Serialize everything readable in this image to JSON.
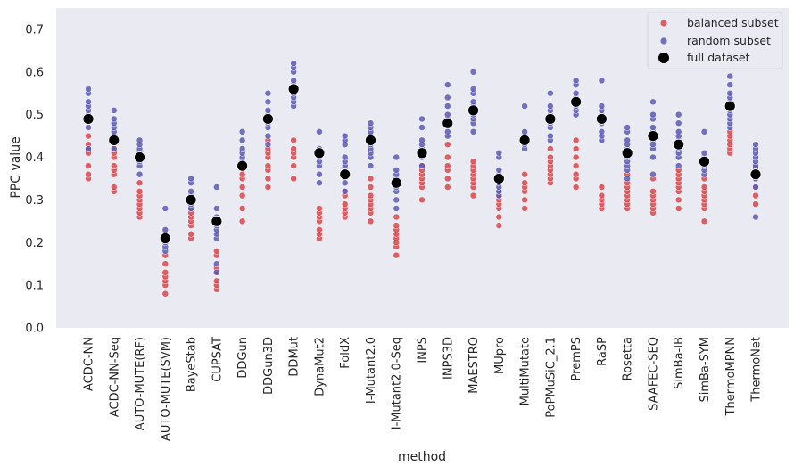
{
  "chart_data": {
    "type": "scatter",
    "xlabel": "method",
    "ylabel": "PPC value",
    "ylim": [
      0.0,
      0.75
    ],
    "yticks": [
      "0.0",
      "0.1",
      "0.2",
      "0.3",
      "0.4",
      "0.5",
      "0.6",
      "0.7"
    ],
    "grid": false,
    "legend_position": "top-right",
    "categories": [
      "ACDC-NN",
      "ACDC-NN-Seq",
      "AUTO-MUTE(RF)",
      "AUTO-MUTE(SVM)",
      "BayeStab",
      "CUPSAT",
      "DDGun",
      "DDGun3D",
      "DDMut",
      "DynaMut2",
      "FoldX",
      "I-Mutant2.0",
      "I-Mutant2.0-Seq",
      "INPS",
      "INPS3D",
      "MAESTRO",
      "MUpro",
      "MultiMutate",
      "PoPMuSiC_2.1",
      "PremPS",
      "RaSP",
      "Rosetta",
      "SAAFEC-SEQ",
      "SimBa-IB",
      "SimBa-SYM",
      "ThermoMPNN",
      "ThermoNet"
    ],
    "series": [
      {
        "name": "balanced subset",
        "color": "#d9474c",
        "values": [
          [
            0.35,
            0.36,
            0.38,
            0.41,
            0.42,
            0.43,
            0.45
          ],
          [
            0.32,
            0.33,
            0.36,
            0.37,
            0.38,
            0.4,
            0.41,
            0.42
          ],
          [
            0.26,
            0.27,
            0.28,
            0.29,
            0.3,
            0.31,
            0.32,
            0.34
          ],
          [
            0.08,
            0.1,
            0.11,
            0.12,
            0.13,
            0.15,
            0.17
          ],
          [
            0.21,
            0.22,
            0.24,
            0.25,
            0.26,
            0.27,
            0.28
          ],
          [
            0.09,
            0.1,
            0.11,
            0.13,
            0.14,
            0.17,
            0.18
          ],
          [
            0.25,
            0.28,
            0.31,
            0.33,
            0.35,
            0.36,
            0.38
          ],
          [
            0.33,
            0.35,
            0.37,
            0.38,
            0.4,
            0.41,
            0.42,
            0.44
          ],
          [
            0.35,
            0.38,
            0.4,
            0.41,
            0.42,
            0.44
          ],
          [
            0.21,
            0.22,
            0.23,
            0.25,
            0.26,
            0.27,
            0.28
          ],
          [
            0.26,
            0.27,
            0.28,
            0.29,
            0.31,
            0.32
          ],
          [
            0.25,
            0.27,
            0.28,
            0.29,
            0.3,
            0.31,
            0.33,
            0.35
          ],
          [
            0.17,
            0.19,
            0.2,
            0.21,
            0.22,
            0.23,
            0.24,
            0.26
          ],
          [
            0.3,
            0.33,
            0.34,
            0.35,
            0.36,
            0.37,
            0.38
          ],
          [
            0.33,
            0.35,
            0.37,
            0.38,
            0.4,
            0.43
          ],
          [
            0.31,
            0.33,
            0.34,
            0.35,
            0.36,
            0.37,
            0.38,
            0.39
          ],
          [
            0.24,
            0.26,
            0.28,
            0.29,
            0.3,
            0.31,
            0.32
          ],
          [
            0.28,
            0.3,
            0.32,
            0.33,
            0.34,
            0.36
          ],
          [
            0.34,
            0.35,
            0.36,
            0.37,
            0.38,
            0.39,
            0.4,
            0.42
          ],
          [
            0.33,
            0.35,
            0.36,
            0.38,
            0.4,
            0.42,
            0.44
          ],
          [
            0.28,
            0.29,
            0.3,
            0.31,
            0.33
          ],
          [
            0.28,
            0.29,
            0.3,
            0.31,
            0.32,
            0.33,
            0.34,
            0.36
          ],
          [
            0.27,
            0.28,
            0.29,
            0.3,
            0.31,
            0.32,
            0.35
          ],
          [
            0.28,
            0.3,
            0.32,
            0.33,
            0.34,
            0.35,
            0.36,
            0.37
          ],
          [
            0.25,
            0.28,
            0.29,
            0.3,
            0.31,
            0.32,
            0.33,
            0.35
          ],
          [
            0.41,
            0.42,
            0.43,
            0.44,
            0.45,
            0.46
          ],
          [
            0.29,
            0.31,
            0.33,
            0.35,
            0.36,
            0.38
          ]
        ]
      },
      {
        "name": "random subset",
        "color": "#5b5bb5",
        "values": [
          [
            0.42,
            0.47,
            0.49,
            0.5,
            0.51,
            0.52,
            0.53,
            0.55,
            0.56
          ],
          [
            0.42,
            0.44,
            0.45,
            0.46,
            0.47,
            0.48,
            0.49,
            0.51
          ],
          [
            0.36,
            0.38,
            0.39,
            0.4,
            0.41,
            0.42,
            0.43,
            0.44
          ],
          [
            0.18,
            0.19,
            0.2,
            0.21,
            0.22,
            0.23,
            0.28
          ],
          [
            0.28,
            0.29,
            0.3,
            0.31,
            0.32,
            0.34,
            0.35
          ],
          [
            0.13,
            0.15,
            0.21,
            0.22,
            0.23,
            0.24,
            0.25,
            0.26,
            0.28,
            0.33
          ],
          [
            0.38,
            0.39,
            0.4,
            0.41,
            0.42,
            0.44,
            0.46
          ],
          [
            0.43,
            0.45,
            0.47,
            0.48,
            0.49,
            0.5,
            0.51,
            0.53,
            0.55
          ],
          [
            0.52,
            0.53,
            0.54,
            0.55,
            0.56,
            0.57,
            0.58,
            0.6,
            0.61,
            0.62
          ],
          [
            0.34,
            0.36,
            0.38,
            0.39,
            0.4,
            0.41,
            0.42,
            0.46
          ],
          [
            0.32,
            0.34,
            0.36,
            0.37,
            0.38,
            0.39,
            0.4,
            0.43,
            0.44,
            0.45
          ],
          [
            0.38,
            0.4,
            0.41,
            0.42,
            0.43,
            0.44,
            0.45,
            0.46,
            0.47,
            0.48
          ],
          [
            0.28,
            0.3,
            0.32,
            0.33,
            0.34,
            0.35,
            0.36,
            0.37,
            0.4
          ],
          [
            0.38,
            0.4,
            0.41,
            0.42,
            0.43,
            0.44,
            0.47,
            0.49
          ],
          [
            0.45,
            0.46,
            0.48,
            0.49,
            0.5,
            0.52,
            0.54,
            0.57
          ],
          [
            0.46,
            0.48,
            0.49,
            0.5,
            0.51,
            0.52,
            0.53,
            0.55,
            0.56,
            0.6
          ],
          [
            0.31,
            0.32,
            0.33,
            0.34,
            0.35,
            0.36,
            0.37,
            0.4,
            0.41
          ],
          [
            0.42,
            0.43,
            0.44,
            0.45,
            0.46,
            0.52
          ],
          [
            0.44,
            0.45,
            0.47,
            0.48,
            0.49,
            0.5,
            0.51,
            0.52,
            0.55
          ],
          [
            0.5,
            0.51,
            0.52,
            0.53,
            0.54,
            0.55,
            0.57,
            0.58
          ],
          [
            0.44,
            0.45,
            0.46,
            0.48,
            0.49,
            0.5,
            0.51,
            0.52,
            0.58
          ],
          [
            0.35,
            0.37,
            0.38,
            0.39,
            0.4,
            0.41,
            0.42,
            0.43,
            0.44,
            0.46,
            0.47
          ],
          [
            0.36,
            0.4,
            0.42,
            0.43,
            0.44,
            0.45,
            0.46,
            0.47,
            0.49,
            0.5,
            0.53
          ],
          [
            0.38,
            0.4,
            0.41,
            0.42,
            0.43,
            0.44,
            0.45,
            0.46,
            0.48,
            0.5
          ],
          [
            0.36,
            0.37,
            0.38,
            0.39,
            0.4,
            0.41,
            0.46
          ],
          [
            0.47,
            0.48,
            0.49,
            0.5,
            0.51,
            0.52,
            0.53,
            0.54,
            0.55,
            0.57,
            0.59
          ],
          [
            0.26,
            0.33,
            0.35,
            0.36,
            0.37,
            0.38,
            0.39,
            0.4,
            0.41,
            0.42,
            0.43
          ]
        ]
      },
      {
        "name": "full dataset",
        "color": "#000000",
        "values": [
          0.49,
          0.44,
          0.4,
          0.21,
          0.3,
          0.25,
          0.38,
          0.49,
          0.56,
          0.41,
          0.36,
          0.44,
          0.34,
          0.41,
          0.48,
          0.51,
          0.35,
          0.44,
          0.49,
          0.53,
          0.49,
          0.41,
          0.45,
          0.43,
          0.39,
          0.52,
          0.36
        ]
      }
    ]
  }
}
